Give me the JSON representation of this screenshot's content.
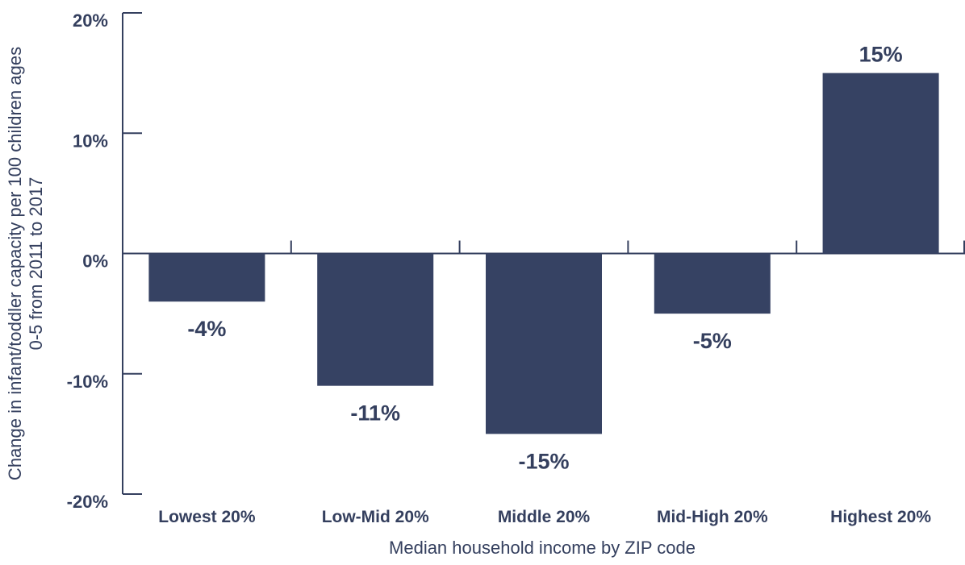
{
  "chart_data": {
    "type": "bar",
    "categories": [
      "Lowest 20%",
      "Low-Mid 20%",
      "Middle 20%",
      "Mid-High 20%",
      "Highest 20%"
    ],
    "values": [
      -4,
      -11,
      -15,
      -5,
      15
    ],
    "data_labels": [
      "-4%",
      "-11%",
      "-15%",
      "-5%",
      "15%"
    ],
    "yticks": [
      20,
      10,
      0,
      -10,
      -20
    ],
    "ytick_labels": [
      "20%",
      "10%",
      "0%",
      "-10%",
      "-20%"
    ],
    "ylim": [
      -20,
      20
    ],
    "xlabel": "Median household income by ZIP code",
    "ylabel_lines": [
      "Change in infant/toddler capacity per 100 children ages",
      "0-5 from 2011 to 2017"
    ],
    "grid": false,
    "colors": {
      "bar": "#364263",
      "axis": "#343f5e",
      "text": "#343f5e"
    }
  }
}
